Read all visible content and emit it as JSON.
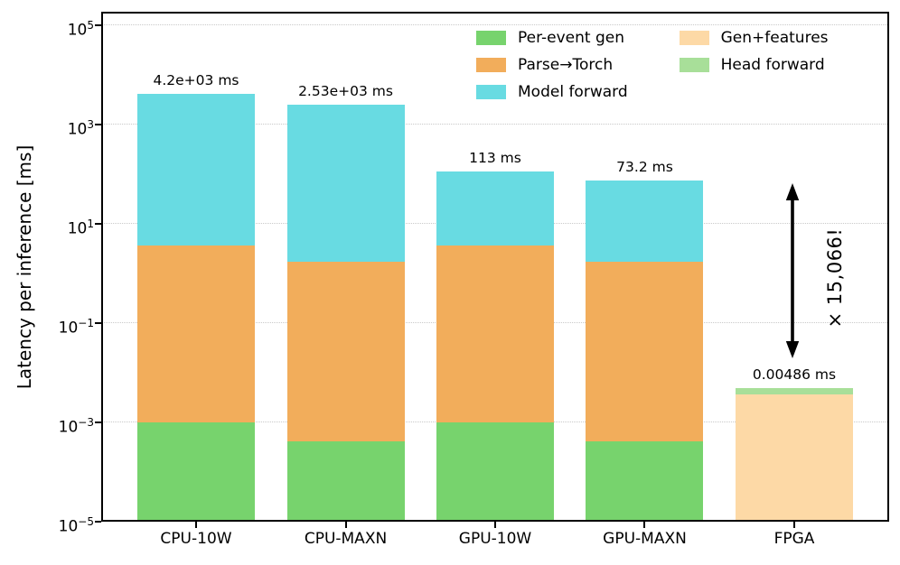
{
  "chart_data": {
    "type": "bar",
    "subtype": "stacked-log-scale",
    "title": "",
    "xlabel": "",
    "ylabel": "Latency per inference [ms]",
    "ylim": [
      1e-05,
      100000
    ],
    "ytick_exponents": [
      "5",
      "3",
      "1",
      "−1",
      "−3",
      "−5"
    ],
    "ytick_exponent_values": [
      5,
      3,
      1,
      -1,
      -3,
      -5
    ],
    "grid": "horizontal dotted lines at labeled decades",
    "legend_position": "upper right inside plot, frameless, 2 columns",
    "categories": [
      "CPU-10W",
      "CPU-MAXN",
      "GPU-10W",
      "GPU-MAXN",
      "FPGA"
    ],
    "series_colors": {
      "Per-event gen": "#77d36d",
      "Parse→Torch": "#f2ad5b",
      "Model forward": "#68dbe2",
      "Gen+features": "#fdd9a6",
      "Head forward": "#a8df99"
    },
    "legend_columns": [
      [
        "Per-event gen",
        "Parse→Torch",
        "Model forward"
      ],
      [
        "Gen+features",
        "Head forward"
      ]
    ],
    "bars": [
      {
        "category": "CPU-10W",
        "label": "4.2e+03 ms",
        "total_ms": 4200,
        "segments": [
          {
            "series": "Per-event gen",
            "cumulative_top_ms": 0.001
          },
          {
            "series": "Parse→Torch",
            "cumulative_top_ms": 3.7
          },
          {
            "series": "Model forward",
            "cumulative_top_ms": 4200
          }
        ]
      },
      {
        "category": "CPU-MAXN",
        "label": "2.53e+03 ms",
        "total_ms": 2530,
        "segments": [
          {
            "series": "Per-event gen",
            "cumulative_top_ms": 0.00042
          },
          {
            "series": "Parse→Torch",
            "cumulative_top_ms": 1.7
          },
          {
            "series": "Model forward",
            "cumulative_top_ms": 2530
          }
        ]
      },
      {
        "category": "GPU-10W",
        "label": "113 ms",
        "total_ms": 113,
        "segments": [
          {
            "series": "Per-event gen",
            "cumulative_top_ms": 0.001
          },
          {
            "series": "Parse→Torch",
            "cumulative_top_ms": 3.7
          },
          {
            "series": "Model forward",
            "cumulative_top_ms": 113
          }
        ]
      },
      {
        "category": "GPU-MAXN",
        "label": "73.2 ms",
        "total_ms": 73.2,
        "segments": [
          {
            "series": "Per-event gen",
            "cumulative_top_ms": 0.00042
          },
          {
            "series": "Parse→Torch",
            "cumulative_top_ms": 1.7
          },
          {
            "series": "Model forward",
            "cumulative_top_ms": 73.2
          }
        ]
      },
      {
        "category": "FPGA",
        "label": "0.00486 ms",
        "total_ms": 0.00486,
        "segments": [
          {
            "series": "Gen+features",
            "cumulative_top_ms": 0.0037
          },
          {
            "series": "Head forward",
            "cumulative_top_ms": 0.00486
          }
        ]
      }
    ],
    "annotation": {
      "text": "× 15,066!",
      "style": "vertical double-headed black arrow beside FPGA bar, rotated text"
    },
    "colors": {
      "axis": "#000000",
      "gridline": "#c9c9c9",
      "text": "#000000",
      "background": "#ffffff"
    }
  }
}
